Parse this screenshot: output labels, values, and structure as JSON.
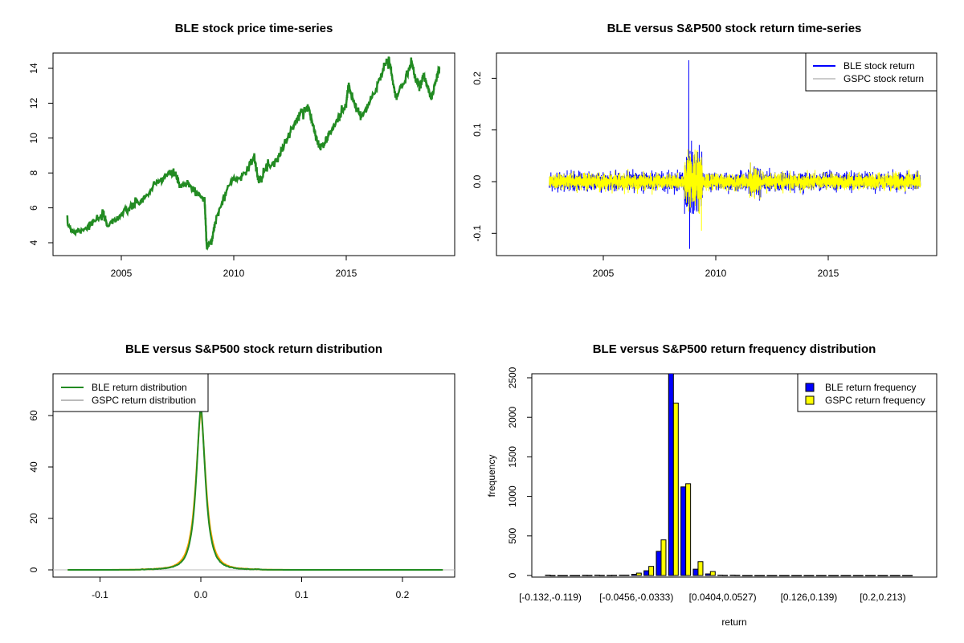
{
  "chart_data": [
    {
      "type": "line",
      "title": "BLE stock price time-series",
      "xlabel": "",
      "ylabel": "",
      "xticks": [
        "2005",
        "2010",
        "2015"
      ],
      "yticks": [
        "4",
        "6",
        "8",
        "10",
        "12",
        "14"
      ],
      "xlim": [
        2002.1,
        2019.9
      ],
      "ylim": [
        3.6,
        14.8
      ],
      "color": "#228B22",
      "x": [
        2002.6,
        2002.9,
        2003.5,
        2004.2,
        2004.4,
        2005,
        2005.5,
        2006,
        2006.5,
        2007,
        2007.4,
        2007.6,
        2008,
        2008.3,
        2008.7,
        2008.8,
        2009,
        2009.2,
        2009.8,
        2010.5,
        2010.9,
        2011.1,
        2011.5,
        2011.9,
        2012.3,
        2012.7,
        2013,
        2013.3,
        2013.6,
        2013.8,
        2014,
        2014.2,
        2014.6,
        2015,
        2015.1,
        2015.4,
        2015.7,
        2016.3,
        2016.7,
        2016.9,
        2017,
        2017.2,
        2017.6,
        2017.9,
        2018.1,
        2018.3,
        2018.45,
        2018.6,
        2018.8,
        2018.95,
        2019.15
      ],
      "y": [
        5.1,
        4.6,
        4.9,
        5.6,
        5.0,
        5.6,
        6.1,
        6.5,
        7.3,
        7.9,
        8.0,
        7.2,
        7.4,
        6.9,
        6.5,
        3.8,
        4.0,
        5.3,
        7.4,
        8.0,
        8.9,
        7.6,
        8.4,
        8.7,
        9.8,
        10.8,
        11.5,
        11.8,
        10.4,
        9.5,
        9.6,
        10.1,
        11.0,
        12.0,
        13.0,
        11.8,
        11.2,
        12.7,
        14.2,
        14.5,
        13.8,
        12.3,
        13.3,
        14.4,
        13.3,
        13.0,
        13.7,
        12.9,
        12.3,
        13.1,
        14.1
      ]
    },
    {
      "type": "line",
      "title": "BLE versus S&P500 stock return time-series",
      "xticks": [
        "2005",
        "2010",
        "2015"
      ],
      "yticks": [
        "-0.1",
        "0.0",
        "0.1",
        "0.2"
      ],
      "ylim": [
        -0.14,
        0.24
      ],
      "legend": {
        "position": "top-right",
        "entries": [
          "BLE stock return",
          "GSPC stock return"
        ]
      },
      "series": [
        {
          "name": "BLE stock return",
          "color": "#0000FF",
          "typical_abs": 0.012,
          "max": 0.235,
          "min": -0.13
        },
        {
          "name": "GSPC stock return",
          "color": "#FFFF00",
          "typical_abs": 0.012,
          "max": 0.11,
          "min": -0.095
        }
      ]
    },
    {
      "type": "line",
      "title": "BLE versus S&P500 stock return distribution",
      "xticks": [
        "-0.1",
        "0.0",
        "0.1",
        "0.2"
      ],
      "yticks": [
        "0",
        "20",
        "40",
        "60"
      ],
      "xlim": [
        -0.14,
        0.25
      ],
      "ylim": [
        -2,
        77
      ],
      "legend": {
        "position": "top-left",
        "entries": [
          "BLE return distribution",
          "GSPC return distribution"
        ]
      },
      "series": [
        {
          "name": "BLE return distribution",
          "color": "#228B22",
          "peak": 64,
          "scale": 0.0062
        },
        {
          "name": "GSPC return distribution",
          "color": "#FFA500",
          "peak": 62,
          "scale": 0.0068
        }
      ]
    },
    {
      "type": "bar",
      "title": "BLE versus S&P500 return frequency distribution",
      "xlabel": "return",
      "ylabel": "frequency",
      "xtick_labels": [
        {
          "bin": 0,
          "label": "[-0.132,-0.119)"
        },
        {
          "bin": 7,
          "label": "[-0.0456,-0.0333)"
        },
        {
          "bin": 14,
          "label": "[0.0404,0.0527)"
        },
        {
          "bin": 21,
          "label": "[0.126,0.139)"
        },
        {
          "bin": 27,
          "label": "[0.2,0.213)"
        }
      ],
      "yticks": [
        "0",
        "500",
        "1000",
        "1500",
        "2000",
        "2500"
      ],
      "ylim": [
        0,
        2590
      ],
      "legend": {
        "position": "top-right",
        "entries": [
          "BLE return frequency",
          "GSPC return frequency"
        ]
      },
      "series": [
        {
          "name": "BLE return frequency",
          "color": "#0000FF",
          "values": [
            5,
            0,
            0,
            3,
            5,
            2,
            5,
            15,
            60,
            305,
            2590,
            1120,
            80,
            20,
            5,
            5,
            0,
            0,
            0,
            0,
            0,
            0,
            0,
            0,
            0,
            0,
            0,
            0,
            0,
            0
          ]
        },
        {
          "name": "GSPC return frequency",
          "color": "#FFFF00",
          "values": [
            0,
            0,
            0,
            2,
            2,
            3,
            5,
            30,
            115,
            450,
            2180,
            1160,
            175,
            50,
            3,
            3,
            0,
            0,
            0,
            0,
            0,
            0,
            0,
            0,
            0,
            0,
            0,
            0,
            0,
            0
          ]
        }
      ]
    }
  ]
}
